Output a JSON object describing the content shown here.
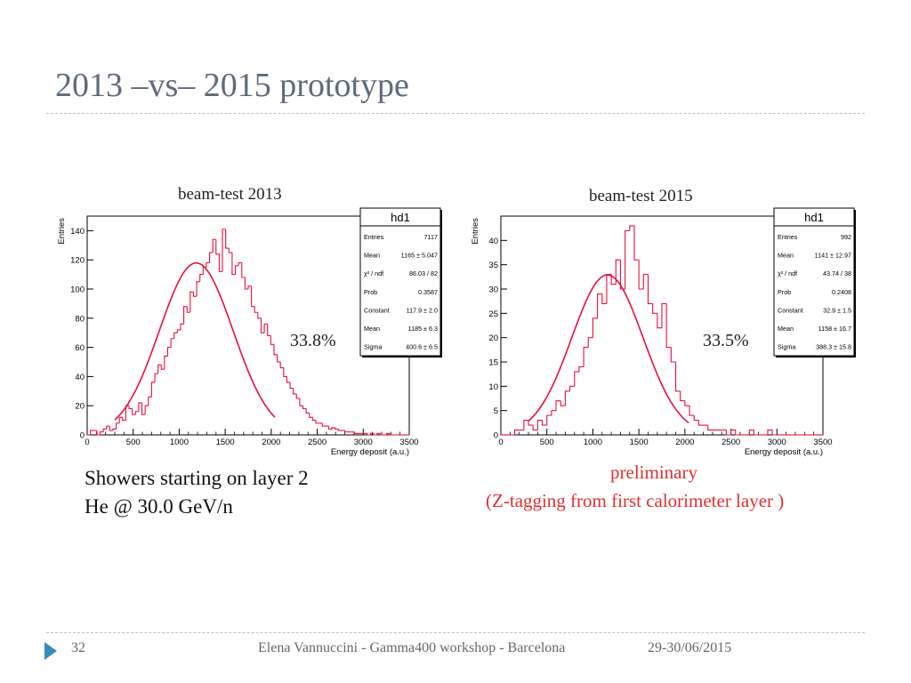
{
  "slide": {
    "title": "2013 –vs– 2015 prototype",
    "notes_line1": "Showers starting on layer 2",
    "notes_line2": "He @ 30.0 GeV/n",
    "preliminary": "preliminary",
    "ztag": "(Z-tagging from first calorimeter layer )",
    "accent_color": "#e03030"
  },
  "panels": [
    {
      "caption": "beam-test 2013",
      "resolution": "33.8%",
      "stats": {
        "title": "hd1",
        "rows": [
          {
            "label": "Entries",
            "value": "7117"
          },
          {
            "label": "Mean",
            "value": "1165 ±  5.047"
          },
          {
            "label": "χ² / ndf",
            "value": "86.03 / 82"
          },
          {
            "label": "Prob",
            "value": "0.3587"
          },
          {
            "label": "Constant",
            "value": "117.9 ± 2.0"
          },
          {
            "label": "Mean",
            "value": "1185 ± 6.3"
          },
          {
            "label": "Sigma",
            "value": "400.6 ± 6.5"
          }
        ]
      }
    },
    {
      "caption": "beam-test 2015",
      "resolution": "33.5%",
      "stats": {
        "title": "hd1",
        "rows": [
          {
            "label": "Entries",
            "value": "992"
          },
          {
            "label": "Mean",
            "value": "1141 ±  12.97"
          },
          {
            "label": "χ² / ndf",
            "value": "43.74 / 38"
          },
          {
            "label": "Prob",
            "value": "0.2408"
          },
          {
            "label": "Constant",
            "value": "32.9 ± 1.5"
          },
          {
            "label": "Mean",
            "value": "1158 ± 16.7"
          },
          {
            "label": "Sigma",
            "value": "388.3 ± 15.8"
          }
        ]
      }
    }
  ],
  "footer": {
    "page": "32",
    "author": "Elena Vannuccini - Gamma400 workshop - Barcelona",
    "date": "29-30/06/2015"
  },
  "chart_data": [
    {
      "type": "histogram",
      "xlabel": "Energy deposit (a.u.)",
      "ylabel": "Entries",
      "xlim": [
        0,
        3500
      ],
      "ylim": [
        0,
        150
      ],
      "xticks": [
        0,
        500,
        1000,
        1500,
        2000,
        2500,
        3000,
        3500
      ],
      "yticks": [
        0,
        20,
        40,
        60,
        80,
        100,
        120,
        140
      ],
      "bin_width": 35,
      "bin_start": 0,
      "values": [
        0,
        3,
        3,
        0,
        2,
        4,
        6,
        3,
        4,
        8,
        12,
        10,
        20,
        18,
        14,
        16,
        22,
        14,
        20,
        26,
        36,
        42,
        48,
        45,
        54,
        60,
        66,
        70,
        72,
        76,
        88,
        84,
        98,
        95,
        105,
        110,
        115,
        118,
        125,
        134,
        124,
        112,
        141,
        128,
        125,
        110,
        116,
        118,
        108,
        100,
        102,
        88,
        84,
        80,
        70,
        76,
        68,
        62,
        55,
        50,
        46,
        40,
        36,
        32,
        28,
        25,
        20,
        18,
        15,
        12,
        10,
        8,
        8,
        6,
        6,
        4,
        5,
        4,
        3,
        3,
        2,
        2,
        2,
        1,
        1,
        1,
        1,
        0,
        1,
        0,
        1,
        0,
        0,
        1,
        0,
        0,
        0,
        0,
        0,
        0
      ],
      "fit": {
        "type": "gaussian",
        "constant": 117.9,
        "mean": 1185,
        "sigma": 400.6
      },
      "line_color": "#e8103c"
    },
    {
      "type": "histogram",
      "xlabel": "Energy deposit (a.u.)",
      "ylabel": "Entries",
      "xlim": [
        0,
        3500
      ],
      "ylim": [
        0,
        45
      ],
      "xticks": [
        0,
        500,
        1000,
        1500,
        2000,
        2500,
        3000,
        3500
      ],
      "yticks": [
        0,
        5,
        10,
        15,
        20,
        25,
        30,
        35,
        40
      ],
      "bin_width": 50,
      "bin_start": 0,
      "values": [
        0,
        0,
        0,
        1,
        1,
        3,
        2,
        1,
        3,
        2,
        4,
        5,
        7,
        6,
        9,
        10,
        13,
        14,
        18,
        20,
        24,
        29,
        27,
        33,
        31,
        36,
        30,
        42,
        43,
        36,
        30,
        33,
        27,
        25,
        22,
        27,
        18,
        15,
        9,
        7,
        6,
        4,
        3,
        2,
        2,
        1,
        1,
        1,
        1,
        0,
        1,
        0,
        0,
        0,
        1,
        0,
        0,
        0,
        1,
        0,
        0,
        0,
        0,
        0,
        0,
        0,
        0,
        0,
        0,
        0
      ],
      "fit": {
        "type": "gaussian",
        "constant": 32.9,
        "mean": 1158,
        "sigma": 388.3
      },
      "line_color": "#e8103c"
    }
  ]
}
